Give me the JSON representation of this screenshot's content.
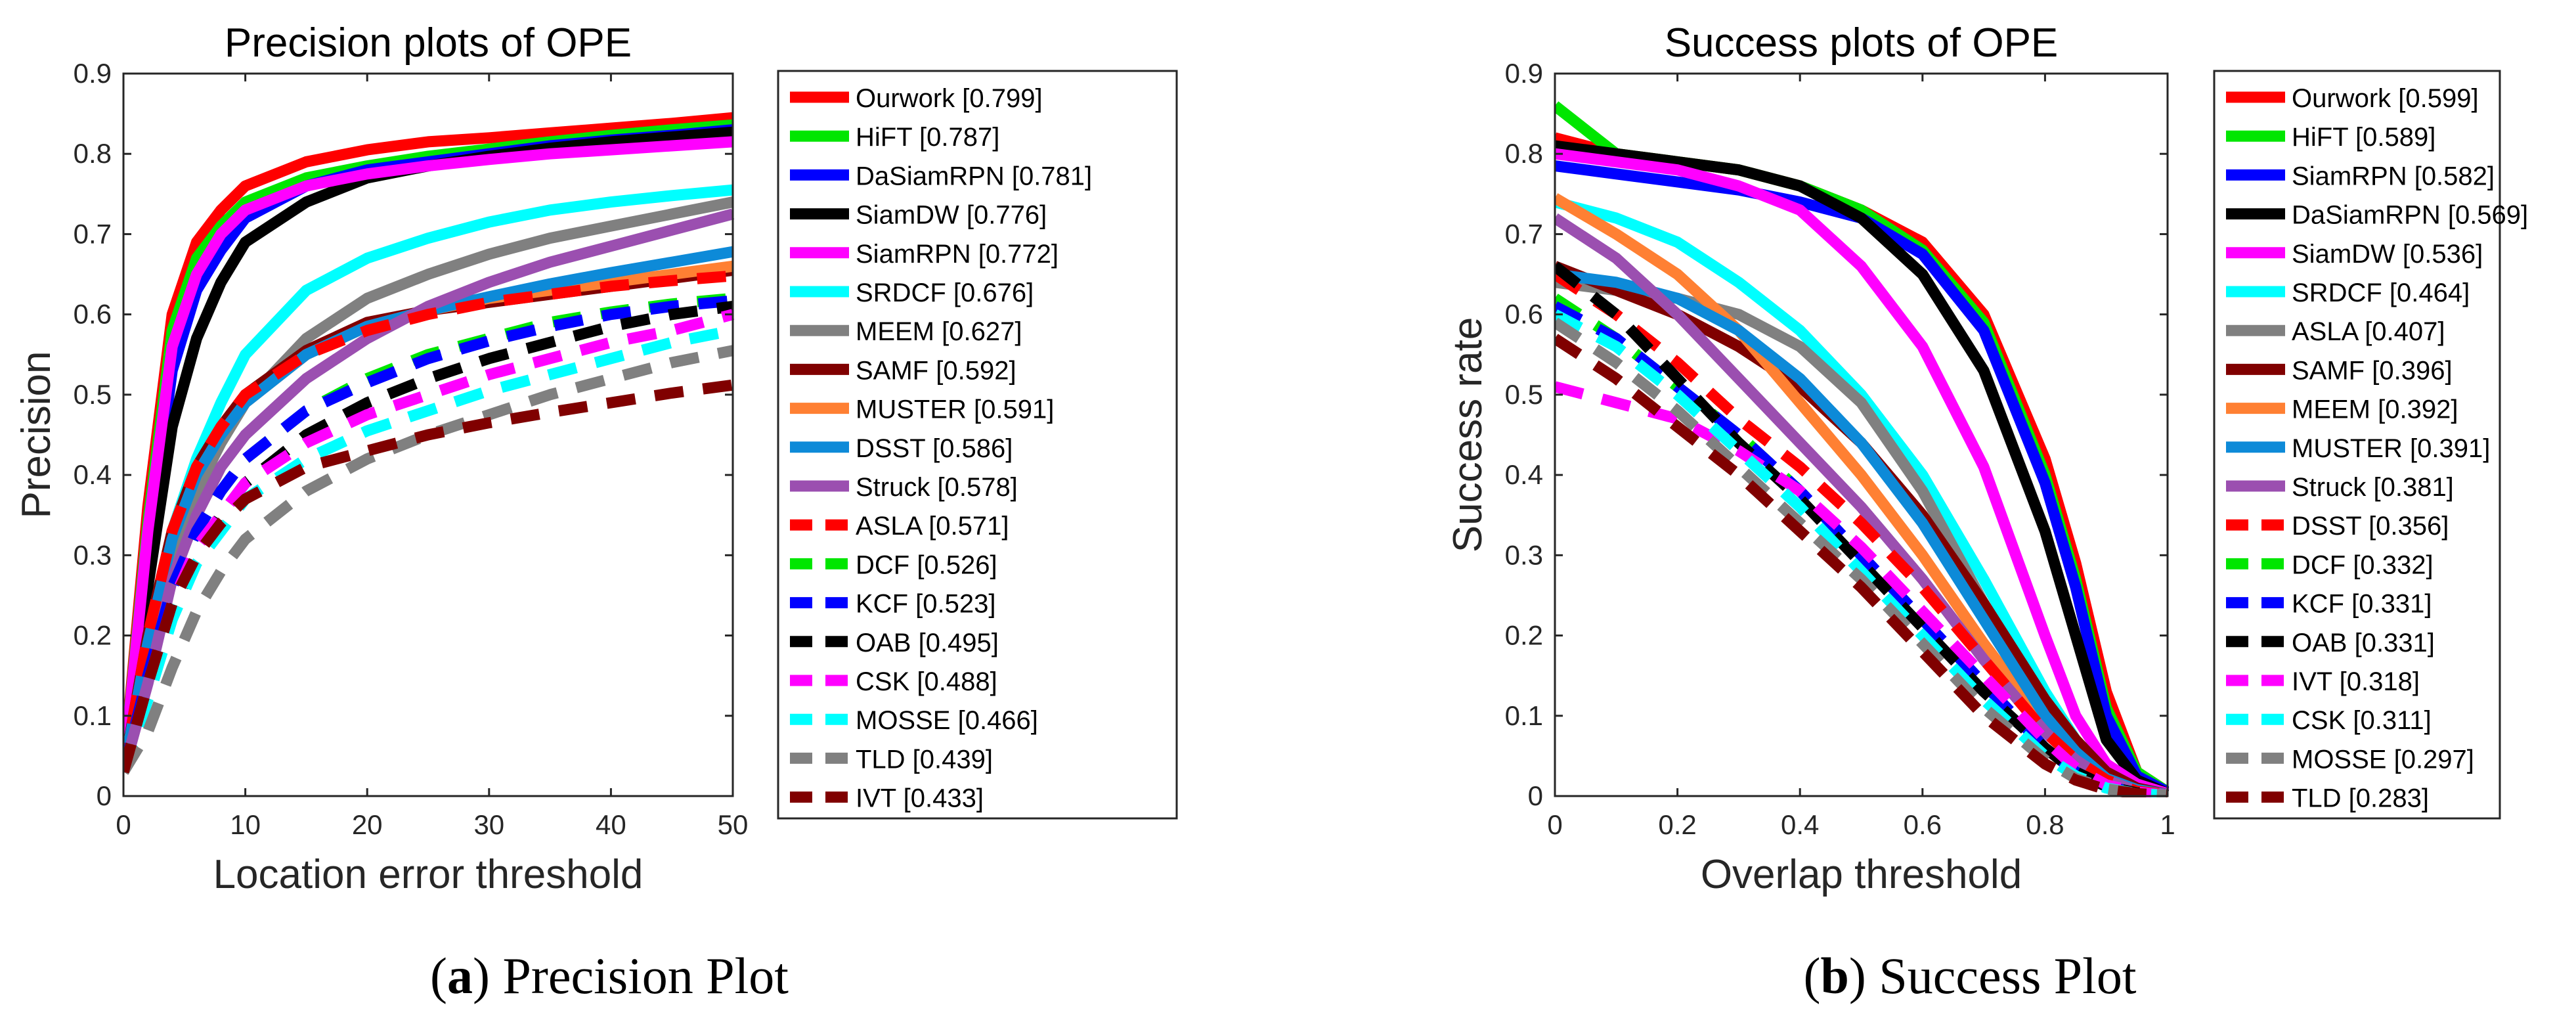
{
  "colors": {
    "red": "#ff0000",
    "green": "#00e600",
    "blue": "#0000ff",
    "black": "#000000",
    "magenta": "#ff00ff",
    "cyan": "#00ffff",
    "gray": "#808080",
    "darkred": "#800000",
    "orange": "#ff8033",
    "steelblue": "#0d8ad8",
    "purple": "#9b4fb0"
  },
  "captions": [
    {
      "letter": "a",
      "text": " Precision Plot"
    },
    {
      "letter": "b",
      "text": " Success Plot"
    }
  ],
  "chart_data": [
    {
      "type": "line",
      "title": "Precision plots of OPE",
      "xlabel": "Location error threshold",
      "ylabel": "Precision",
      "xlim": [
        0,
        50
      ],
      "ylim": [
        0,
        0.9
      ],
      "xticks": [
        0,
        10,
        20,
        30,
        40,
        50
      ],
      "xtick_labels": [
        "0",
        "10",
        "20",
        "30",
        "40",
        "50"
      ],
      "yticks": [
        0,
        0.1,
        0.2,
        0.3,
        0.4,
        0.5,
        0.6,
        0.7,
        0.8,
        0.9
      ],
      "ytick_labels": [
        "0",
        "0.1",
        "0.2",
        "0.3",
        "0.4",
        "0.5",
        "0.6",
        "0.7",
        "0.8",
        "0.9"
      ],
      "legend_position": "outside-right",
      "x": [
        0,
        2,
        4,
        6,
        8,
        10,
        15,
        20,
        25,
        30,
        35,
        40,
        45,
        50
      ],
      "series": [
        {
          "name": "Ourwork [0.799]",
          "color": "red",
          "dash": false,
          "values": [
            0.03,
            0.36,
            0.6,
            0.69,
            0.73,
            0.76,
            0.79,
            0.805,
            0.815,
            0.82,
            0.826,
            0.832,
            0.838,
            0.845
          ]
        },
        {
          "name": "HiFT [0.787]",
          "color": "green",
          "dash": false,
          "values": [
            0.03,
            0.34,
            0.58,
            0.67,
            0.71,
            0.74,
            0.77,
            0.785,
            0.797,
            0.806,
            0.815,
            0.823,
            0.83,
            0.836
          ]
        },
        {
          "name": "DaSiamRPN [0.781]",
          "color": "blue",
          "dash": false,
          "values": [
            0.03,
            0.3,
            0.53,
            0.63,
            0.68,
            0.72,
            0.76,
            0.78,
            0.79,
            0.8,
            0.81,
            0.817,
            0.823,
            0.83
          ]
        },
        {
          "name": "SiamDW [0.776]",
          "color": "black",
          "dash": false,
          "values": [
            0.03,
            0.26,
            0.46,
            0.57,
            0.64,
            0.69,
            0.74,
            0.77,
            0.785,
            0.797,
            0.807,
            0.815,
            0.821,
            0.827
          ]
        },
        {
          "name": "SiamRPN [0.772]",
          "color": "magenta",
          "dash": false,
          "values": [
            0.03,
            0.33,
            0.56,
            0.65,
            0.7,
            0.73,
            0.76,
            0.775,
            0.785,
            0.793,
            0.8,
            0.805,
            0.81,
            0.815
          ]
        },
        {
          "name": "SRDCF [0.676]",
          "color": "cyan",
          "dash": false,
          "values": [
            0.03,
            0.18,
            0.33,
            0.42,
            0.49,
            0.55,
            0.63,
            0.67,
            0.695,
            0.715,
            0.73,
            0.74,
            0.748,
            0.755
          ]
        },
        {
          "name": "MEEM [0.627]",
          "color": "gray",
          "dash": false,
          "values": [
            0.03,
            0.15,
            0.29,
            0.38,
            0.44,
            0.49,
            0.57,
            0.62,
            0.65,
            0.675,
            0.695,
            0.71,
            0.725,
            0.74
          ]
        },
        {
          "name": "SAMF [0.592]",
          "color": "darkred",
          "dash": false,
          "values": [
            0.03,
            0.2,
            0.33,
            0.41,
            0.46,
            0.5,
            0.555,
            0.59,
            0.605,
            0.615,
            0.625,
            0.635,
            0.645,
            0.655
          ]
        },
        {
          "name": "MUSTER [0.591]",
          "color": "orange",
          "dash": false,
          "values": [
            0.03,
            0.19,
            0.32,
            0.4,
            0.45,
            0.49,
            0.55,
            0.585,
            0.605,
            0.62,
            0.63,
            0.64,
            0.65,
            0.66
          ]
        },
        {
          "name": "DSST [0.586]",
          "color": "steelblue",
          "dash": false,
          "values": [
            0.03,
            0.19,
            0.32,
            0.4,
            0.45,
            0.49,
            0.55,
            0.585,
            0.605,
            0.622,
            0.638,
            0.652,
            0.665,
            0.678
          ]
        },
        {
          "name": "Struck [0.578]",
          "color": "purple",
          "dash": false,
          "values": [
            0.03,
            0.14,
            0.27,
            0.35,
            0.41,
            0.45,
            0.52,
            0.57,
            0.61,
            0.64,
            0.665,
            0.685,
            0.705,
            0.725
          ]
        },
        {
          "name": "ASLA [0.571]",
          "color": "red",
          "dash": true,
          "values": [
            0.03,
            0.2,
            0.33,
            0.41,
            0.46,
            0.5,
            0.55,
            0.58,
            0.6,
            0.615,
            0.625,
            0.635,
            0.642,
            0.648
          ]
        },
        {
          "name": "DCF [0.526]",
          "color": "green",
          "dash": true,
          "values": [
            0.03,
            0.15,
            0.26,
            0.33,
            0.38,
            0.42,
            0.48,
            0.52,
            0.55,
            0.57,
            0.59,
            0.603,
            0.613,
            0.62
          ]
        },
        {
          "name": "KCF [0.523]",
          "color": "blue",
          "dash": true,
          "values": [
            0.03,
            0.15,
            0.26,
            0.33,
            0.38,
            0.42,
            0.48,
            0.515,
            0.545,
            0.567,
            0.585,
            0.6,
            0.61,
            0.617
          ]
        },
        {
          "name": "OAB [0.495]",
          "color": "black",
          "dash": true,
          "values": [
            0.03,
            0.13,
            0.23,
            0.3,
            0.35,
            0.39,
            0.45,
            0.49,
            0.52,
            0.545,
            0.565,
            0.585,
            0.6,
            0.61
          ]
        },
        {
          "name": "CSK [0.488]",
          "color": "magenta",
          "dash": true,
          "values": [
            0.03,
            0.14,
            0.24,
            0.31,
            0.35,
            0.39,
            0.44,
            0.475,
            0.5,
            0.525,
            0.545,
            0.565,
            0.58,
            0.6
          ]
        },
        {
          "name": "MOSSE [0.466]",
          "color": "cyan",
          "dash": true,
          "values": [
            0.03,
            0.12,
            0.22,
            0.29,
            0.33,
            0.37,
            0.42,
            0.455,
            0.48,
            0.505,
            0.525,
            0.545,
            0.565,
            0.58
          ]
        },
        {
          "name": "TLD [0.439]",
          "color": "gray",
          "dash": true,
          "values": [
            0.03,
            0.08,
            0.16,
            0.23,
            0.28,
            0.32,
            0.38,
            0.42,
            0.45,
            0.475,
            0.5,
            0.52,
            0.54,
            0.555
          ]
        },
        {
          "name": "IVT [0.433]",
          "color": "darkred",
          "dash": true,
          "values": [
            0.03,
            0.14,
            0.24,
            0.3,
            0.34,
            0.37,
            0.41,
            0.43,
            0.45,
            0.465,
            0.478,
            0.49,
            0.502,
            0.512
          ]
        }
      ]
    },
    {
      "type": "line",
      "title": "Success plots of OPE",
      "xlabel": "Overlap threshold",
      "ylabel": "Success rate",
      "xlim": [
        0,
        1
      ],
      "ylim": [
        0,
        0.9
      ],
      "xticks": [
        0,
        0.2,
        0.4,
        0.6,
        0.8,
        1
      ],
      "xtick_labels": [
        "0",
        "0.2",
        "0.4",
        "0.6",
        "0.8",
        "1"
      ],
      "yticks": [
        0,
        0.1,
        0.2,
        0.3,
        0.4,
        0.5,
        0.6,
        0.7,
        0.8,
        0.9
      ],
      "ytick_labels": [
        "0",
        "0.1",
        "0.2",
        "0.3",
        "0.4",
        "0.5",
        "0.6",
        "0.7",
        "0.8",
        "0.9"
      ],
      "legend_position": "outside-right",
      "x": [
        0,
        0.1,
        0.2,
        0.3,
        0.4,
        0.5,
        0.6,
        0.7,
        0.8,
        0.85,
        0.9,
        0.95,
        1
      ],
      "series": [
        {
          "name": "Ourwork [0.599]",
          "color": "red",
          "dash": false,
          "values": [
            0.82,
            0.8,
            0.79,
            0.78,
            0.76,
            0.73,
            0.69,
            0.6,
            0.42,
            0.29,
            0.13,
            0.03,
            0.005
          ]
        },
        {
          "name": "HiFT [0.589]",
          "color": "green",
          "dash": false,
          "values": [
            0.86,
            0.8,
            0.79,
            0.78,
            0.76,
            0.73,
            0.68,
            0.59,
            0.4,
            0.27,
            0.11,
            0.03,
            0.005
          ]
        },
        {
          "name": "SiamRPN [0.582]",
          "color": "blue",
          "dash": false,
          "values": [
            0.785,
            0.775,
            0.765,
            0.755,
            0.74,
            0.72,
            0.675,
            0.58,
            0.39,
            0.26,
            0.1,
            0.025,
            0.005
          ]
        },
        {
          "name": "DaSiamRPN [0.569]",
          "color": "black",
          "dash": false,
          "values": [
            0.81,
            0.8,
            0.79,
            0.78,
            0.76,
            0.72,
            0.65,
            0.53,
            0.33,
            0.2,
            0.07,
            0.02,
            0.003
          ]
        },
        {
          "name": "SiamDW [0.536]",
          "color": "magenta",
          "dash": false,
          "values": [
            0.8,
            0.79,
            0.78,
            0.76,
            0.73,
            0.66,
            0.56,
            0.41,
            0.2,
            0.1,
            0.04,
            0.015,
            0.003
          ]
        },
        {
          "name": "SRDCF [0.464]",
          "color": "cyan",
          "dash": false,
          "values": [
            0.74,
            0.72,
            0.69,
            0.64,
            0.58,
            0.5,
            0.4,
            0.27,
            0.13,
            0.07,
            0.03,
            0.01,
            0.002
          ]
        },
        {
          "name": "ASLA [0.407]",
          "color": "gray",
          "dash": false,
          "values": [
            0.64,
            0.63,
            0.62,
            0.6,
            0.56,
            0.49,
            0.38,
            0.24,
            0.11,
            0.06,
            0.025,
            0.008,
            0.002
          ]
        },
        {
          "name": "SAMF [0.396]",
          "color": "darkred",
          "dash": false,
          "values": [
            0.66,
            0.63,
            0.6,
            0.56,
            0.51,
            0.44,
            0.35,
            0.24,
            0.12,
            0.07,
            0.03,
            0.01,
            0.002
          ]
        },
        {
          "name": "MEEM [0.392]",
          "color": "orange",
          "dash": false,
          "values": [
            0.745,
            0.7,
            0.65,
            0.58,
            0.49,
            0.4,
            0.3,
            0.19,
            0.09,
            0.05,
            0.02,
            0.007,
            0.002
          ]
        },
        {
          "name": "MUSTER [0.391]",
          "color": "steelblue",
          "dash": false,
          "values": [
            0.65,
            0.64,
            0.62,
            0.58,
            0.52,
            0.44,
            0.34,
            0.22,
            0.1,
            0.055,
            0.022,
            0.008,
            0.002
          ]
        },
        {
          "name": "Struck [0.381]",
          "color": "purple",
          "dash": false,
          "values": [
            0.72,
            0.67,
            0.6,
            0.52,
            0.44,
            0.36,
            0.27,
            0.17,
            0.08,
            0.045,
            0.02,
            0.006,
            0.002
          ]
        },
        {
          "name": "DSST [0.356]",
          "color": "red",
          "dash": true,
          "values": [
            0.65,
            0.6,
            0.54,
            0.47,
            0.41,
            0.34,
            0.26,
            0.17,
            0.08,
            0.045,
            0.02,
            0.006,
            0.002
          ]
        },
        {
          "name": "DCF [0.332]",
          "color": "green",
          "dash": true,
          "values": [
            0.62,
            0.57,
            0.51,
            0.45,
            0.38,
            0.3,
            0.22,
            0.14,
            0.06,
            0.03,
            0.012,
            0.004,
            0.001
          ]
        },
        {
          "name": "KCF [0.331]",
          "color": "blue",
          "dash": true,
          "values": [
            0.61,
            0.57,
            0.51,
            0.45,
            0.38,
            0.3,
            0.22,
            0.14,
            0.06,
            0.03,
            0.012,
            0.004,
            0.001
          ]
        },
        {
          "name": "OAB [0.331]",
          "color": "black",
          "dash": true,
          "values": [
            0.66,
            0.6,
            0.52,
            0.44,
            0.37,
            0.29,
            0.21,
            0.13,
            0.06,
            0.03,
            0.012,
            0.004,
            0.001
          ]
        },
        {
          "name": "IVT [0.318]",
          "color": "magenta",
          "dash": true,
          "values": [
            0.51,
            0.49,
            0.47,
            0.43,
            0.38,
            0.31,
            0.23,
            0.15,
            0.07,
            0.035,
            0.014,
            0.005,
            0.001
          ]
        },
        {
          "name": "CSK [0.311]",
          "color": "cyan",
          "dash": true,
          "values": [
            0.6,
            0.56,
            0.5,
            0.43,
            0.36,
            0.28,
            0.2,
            0.12,
            0.05,
            0.025,
            0.01,
            0.003,
            0.001
          ]
        },
        {
          "name": "MOSSE [0.297]",
          "color": "gray",
          "dash": true,
          "values": [
            0.59,
            0.54,
            0.48,
            0.41,
            0.34,
            0.27,
            0.19,
            0.11,
            0.045,
            0.022,
            0.009,
            0.003,
            0.001
          ]
        },
        {
          "name": "TLD [0.283]",
          "color": "darkred",
          "dash": true,
          "values": [
            0.57,
            0.52,
            0.46,
            0.4,
            0.33,
            0.26,
            0.18,
            0.1,
            0.04,
            0.02,
            0.008,
            0.003,
            0.001
          ]
        }
      ]
    }
  ]
}
